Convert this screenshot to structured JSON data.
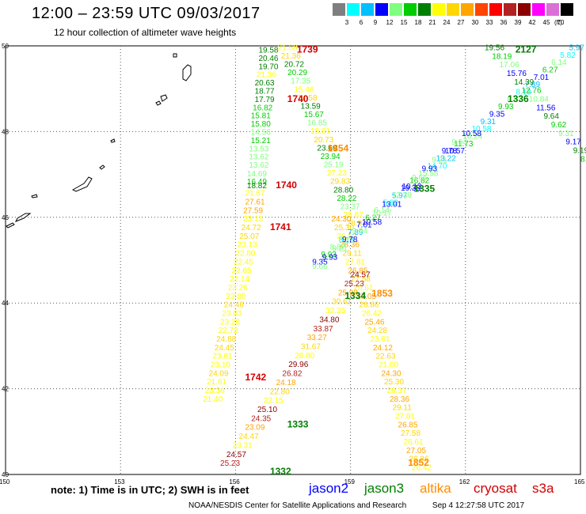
{
  "title": "12:00 – 23:59 UTC 09/03/2017",
  "subtitle": "12 hour collection of altimeter wave heights",
  "colorbar": {
    "unit": "(ft)",
    "labels": [
      "3",
      "6",
      "9",
      "12",
      "15",
      "18",
      "21",
      "24",
      "27",
      "30",
      "33",
      "36",
      "39",
      "42",
      "45",
      "70"
    ],
    "colors": [
      "#7f7f7f",
      "#00ffff",
      "#00bfff",
      "#0000ff",
      "#7fff7f",
      "#00cc00",
      "#008000",
      "#ffff00",
      "#ffd700",
      "#ffa500",
      "#ff4500",
      "#ff0000",
      "#b22222",
      "#8b0000",
      "#ff00ff",
      "#da70d6",
      "#000000"
    ]
  },
  "axes": {
    "lat_labels": [
      "50",
      "48",
      "46",
      "44",
      "42",
      "40"
    ],
    "lon_labels": [
      "150",
      "153",
      "156",
      "159",
      "162",
      "165"
    ]
  },
  "tracks": [
    {
      "id": "1739",
      "color": "#d00000",
      "points": []
    },
    {
      "id": "2127",
      "color": "#008000",
      "points": []
    },
    {
      "id": "1740",
      "color": "#d00000",
      "points": []
    },
    {
      "id": "1336",
      "color": "#008000",
      "points": []
    },
    {
      "id": "1854",
      "color": "#ff8c00",
      "points": []
    },
    {
      "id": "1335",
      "color": "#008000",
      "points": []
    },
    {
      "id": "1741",
      "color": "#d00000",
      "points": []
    },
    {
      "id": "1853",
      "color": "#ff8c00",
      "points": []
    },
    {
      "id": "1334",
      "color": "#008000",
      "points": []
    },
    {
      "id": "1742",
      "color": "#d00000",
      "points": []
    },
    {
      "id": "1333",
      "color": "#008000",
      "points": []
    },
    {
      "id": "1852",
      "color": "#ff8c00",
      "points": []
    },
    {
      "id": "1332",
      "color": "#008000",
      "points": []
    }
  ],
  "labels": [
    {
      "t": "19.58",
      "lon": 156.6,
      "lat": 49.84,
      "c": "#008000"
    },
    {
      "t": "20.46",
      "lon": 156.6,
      "lat": 49.65,
      "c": "#008000"
    },
    {
      "t": "19.70",
      "lon": 156.6,
      "lat": 49.46,
      "c": "#008000"
    },
    {
      "t": "21.36",
      "lon": 156.55,
      "lat": 49.27,
      "c": "#ffff00"
    },
    {
      "t": "20.63",
      "lon": 156.5,
      "lat": 49.08,
      "c": "#008000"
    },
    {
      "t": "18.77",
      "lon": 156.5,
      "lat": 48.88,
      "c": "#008000"
    },
    {
      "t": "17.79",
      "lon": 156.5,
      "lat": 48.69,
      "c": "#008000"
    },
    {
      "t": "16.82",
      "lon": 156.45,
      "lat": 48.5,
      "c": "#00cc00"
    },
    {
      "t": "15.81",
      "lon": 156.4,
      "lat": 48.31,
      "c": "#00cc00"
    },
    {
      "t": "15.80",
      "lon": 156.4,
      "lat": 48.12,
      "c": "#00cc00"
    },
    {
      "t": "14.56",
      "lon": 156.4,
      "lat": 47.92,
      "c": "#7fff7f"
    },
    {
      "t": "15.21",
      "lon": 156.4,
      "lat": 47.73,
      "c": "#00cc00"
    },
    {
      "t": "13.53",
      "lon": 156.35,
      "lat": 47.54,
      "c": "#7fff7f"
    },
    {
      "t": "13.62",
      "lon": 156.35,
      "lat": 47.35,
      "c": "#7fff7f"
    },
    {
      "t": "13.62",
      "lon": 156.35,
      "lat": 47.16,
      "c": "#7fff7f"
    },
    {
      "t": "14.69",
      "lon": 156.3,
      "lat": 46.96,
      "c": "#7fff7f"
    },
    {
      "t": "16.49",
      "lon": 156.3,
      "lat": 46.77,
      "c": "#00cc00"
    },
    {
      "t": "18.82",
      "lon": 156.3,
      "lat": 46.68,
      "c": "#008000"
    },
    {
      "t": "21.67",
      "lon": 156.25,
      "lat": 46.5,
      "c": "#ffff00"
    },
    {
      "t": "27.61",
      "lon": 156.25,
      "lat": 46.3,
      "c": "#ffa500"
    },
    {
      "t": "27.59",
      "lon": 156.2,
      "lat": 46.1,
      "c": "#ffa500"
    },
    {
      "t": "23.13",
      "lon": 156.2,
      "lat": 45.9,
      "c": "#ffff00"
    },
    {
      "t": "24.72",
      "lon": 156.15,
      "lat": 45.7,
      "c": "#ffd700"
    },
    {
      "t": "25.07",
      "lon": 156.1,
      "lat": 45.5,
      "c": "#ffd700"
    },
    {
      "t": "23.13",
      "lon": 156.05,
      "lat": 45.3,
      "c": "#ffff00"
    },
    {
      "t": "22.80",
      "lon": 156.0,
      "lat": 45.1,
      "c": "#ffff00"
    },
    {
      "t": "22.45",
      "lon": 155.95,
      "lat": 44.9,
      "c": "#ffff00"
    },
    {
      "t": "22.65",
      "lon": 155.9,
      "lat": 44.7,
      "c": "#ffff00"
    },
    {
      "t": "22.14",
      "lon": 155.85,
      "lat": 44.5,
      "c": "#ffff00"
    },
    {
      "t": "23.26",
      "lon": 155.8,
      "lat": 44.3,
      "c": "#ffff00"
    },
    {
      "t": "23.80",
      "lon": 155.75,
      "lat": 44.1,
      "c": "#ffff00"
    },
    {
      "t": "24.46",
      "lon": 155.7,
      "lat": 43.9,
      "c": "#ffd700"
    },
    {
      "t": "23.03",
      "lon": 155.65,
      "lat": 43.7,
      "c": "#ffff00"
    },
    {
      "t": "23.28",
      "lon": 155.6,
      "lat": 43.5,
      "c": "#ffff00"
    },
    {
      "t": "22.72",
      "lon": 155.55,
      "lat": 43.3,
      "c": "#ffff00"
    },
    {
      "t": "24.88",
      "lon": 155.5,
      "lat": 43.1,
      "c": "#ffd700"
    },
    {
      "t": "24.45",
      "lon": 155.45,
      "lat": 42.9,
      "c": "#ffd700"
    },
    {
      "t": "23.81",
      "lon": 155.4,
      "lat": 42.7,
      "c": "#ffff00"
    },
    {
      "t": "23.10",
      "lon": 155.35,
      "lat": 42.5,
      "c": "#ffff00"
    },
    {
      "t": "24.09",
      "lon": 155.3,
      "lat": 42.3,
      "c": "#ffd700"
    },
    {
      "t": "21.61",
      "lon": 155.25,
      "lat": 42.1,
      "c": "#ffff00"
    },
    {
      "t": "23.36",
      "lon": 155.2,
      "lat": 41.9,
      "c": "#ffff00"
    },
    {
      "t": "21.40",
      "lon": 155.15,
      "lat": 41.7,
      "c": "#ffff00"
    }
  ],
  "orbit_labels": [
    {
      "t": "1739",
      "lon": 157.6,
      "lat": 49.84,
      "c": "#d00000"
    },
    {
      "t": "2127",
      "lon": 163.3,
      "lat": 49.84,
      "c": "#008000"
    },
    {
      "t": "1740",
      "lon": 157.35,
      "lat": 48.69,
      "c": "#d00000"
    },
    {
      "t": "1336",
      "lon": 163.1,
      "lat": 48.69,
      "c": "#008000"
    },
    {
      "t": "1854",
      "lon": 158.4,
      "lat": 47.54,
      "c": "#ff8c00"
    },
    {
      "t": "1740",
      "lon": 157.05,
      "lat": 46.68,
      "c": "#d00000"
    },
    {
      "t": "1335",
      "lon": 160.65,
      "lat": 46.6,
      "c": "#008000"
    },
    {
      "t": "1741",
      "lon": 156.9,
      "lat": 45.7,
      "c": "#d00000"
    },
    {
      "t": "1853",
      "lon": 159.55,
      "lat": 44.15,
      "c": "#ff8c00"
    },
    {
      "t": "1334",
      "lon": 158.85,
      "lat": 44.1,
      "c": "#008000"
    },
    {
      "t": "1742",
      "lon": 156.25,
      "lat": 42.2,
      "c": "#d00000"
    },
    {
      "t": "1333",
      "lon": 157.35,
      "lat": 41.1,
      "c": "#008000"
    },
    {
      "t": "1852",
      "lon": 160.5,
      "lat": 40.2,
      "c": "#ff8c00"
    },
    {
      "t": "1332",
      "lon": 156.9,
      "lat": 40.0,
      "c": "#008000"
    }
  ],
  "note": "note: 1) Time is in UTC; 2) SWH is in feet",
  "legend": [
    {
      "name": "jason2",
      "color": "#0000ff"
    },
    {
      "name": "jason3",
      "color": "#008000"
    },
    {
      "name": "altika",
      "color": "#ff8c00"
    },
    {
      "name": "cryosat",
      "color": "#d00000"
    },
    {
      "name": "s3a",
      "color": "#d00000"
    }
  ],
  "credit": "NOAA/NESDIS Center for Satellite Applications and Research",
  "timestamp": "Sep  4 12:27:58 UTC 2017"
}
